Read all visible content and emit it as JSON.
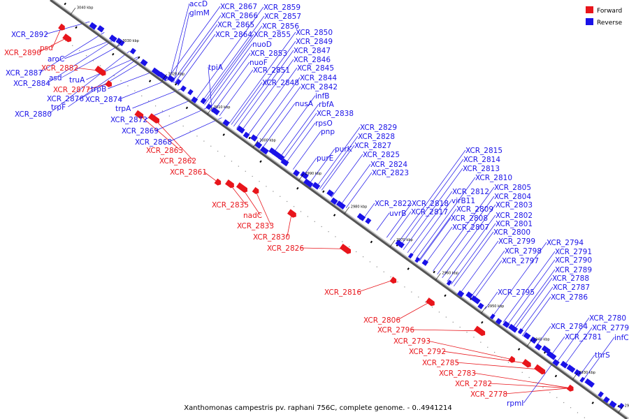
{
  "caption": "Xanthomonas campestris pv. raphani 756C, complete genome. - 0..4941214",
  "legend": [
    {
      "label": "Forward",
      "color": "#e8151b"
    },
    {
      "label": "Reverse",
      "color": "#1a12e8"
    }
  ],
  "colors": {
    "forward": "#e8151b",
    "reverse": "#1a12e8",
    "backbone": "#555555",
    "spine": "#000000"
  },
  "ticks": [
    {
      "label": "3040 kbp"
    },
    {
      "label": "3030 kbp"
    },
    {
      "label": "3020 kbp"
    },
    {
      "label": "3010 kbp"
    },
    {
      "label": "3000 kbp"
    },
    {
      "label": "2990 kbp"
    },
    {
      "label": "2980 kbp"
    },
    {
      "label": "2970 kbp"
    },
    {
      "label": "2960 kbp"
    },
    {
      "label": "2950 kbp"
    },
    {
      "label": "2940 kbp"
    },
    {
      "label": "2930 kbp"
    },
    {
      "label": "2920 kbp"
    }
  ],
  "forward_labels": [
    "psd",
    "XCR_2890",
    "XCR_2882",
    "XCR_2877",
    "XCR_2863",
    "XCR_2862",
    "XCR_2861",
    "XCR_2835",
    "nadC",
    "XCR_2833",
    "XCR_2830",
    "XCR_2826",
    "XCR_2816",
    "XCR_2806",
    "XCR_2796",
    "XCR_2793",
    "XCR_2792",
    "XCR_2785",
    "XCR_2783",
    "XCR_2782",
    "XCR_2778"
  ],
  "reverse_labels": [
    "XCR_2892",
    "aroC",
    "XCR_2887",
    "asd",
    "XCR_2884",
    "truA",
    "trpB",
    "XCR_2876",
    "XCR_2874",
    "trpF",
    "XCR_2880",
    "trpA",
    "XCR_2872",
    "XCR_2869",
    "XCR_2868",
    "accD",
    "glmM",
    "XCR_2867",
    "XCR_2866",
    "XCR_2865",
    "XCR_2864",
    "XCR_2859",
    "XCR_2857",
    "XCR_2856",
    "XCR_2855",
    "XCR_2850",
    "XCR_2849",
    "nuoD",
    "XCR_2853",
    "XCR_2847",
    "nuoF",
    "XCR_2846",
    "tpiA",
    "XCR_2851",
    "XCR_2845",
    "XCR_2844",
    "XCR_2848",
    "XCR_2842",
    "infB",
    "nusA",
    "rbfA",
    "XCR_2838",
    "rpsO",
    "pnp",
    "XCR_2829",
    "XCR_2828",
    "purK",
    "XCR_2827",
    "XCR_2825",
    "purE",
    "XCR_2824",
    "XCR_2823",
    "XCR_2815",
    "XCR_2814",
    "XCR_2813",
    "XCR_2810",
    "XCR_2812",
    "XCR_2805",
    "virB11",
    "XCR_2804",
    "XCR_2822",
    "XCR_2818",
    "XCR_2803",
    "XCR_2809",
    "uvrB",
    "XCR_2817",
    "XCR_2802",
    "XCR_2808",
    "XCR_2801",
    "XCR_2807",
    "XCR_2800",
    "XCR_2799",
    "XCR_2794",
    "XCR_2798",
    "XCR_2791",
    "XCR_2797",
    "XCR_2790",
    "XCR_2789",
    "XCR_2788",
    "XCR_2795",
    "XCR_2787",
    "XCR_2786",
    "XCR_2780",
    "XCR_2784",
    "XCR_2779",
    "XCR_2781",
    "infC",
    "thrS",
    "rpmI"
  ]
}
